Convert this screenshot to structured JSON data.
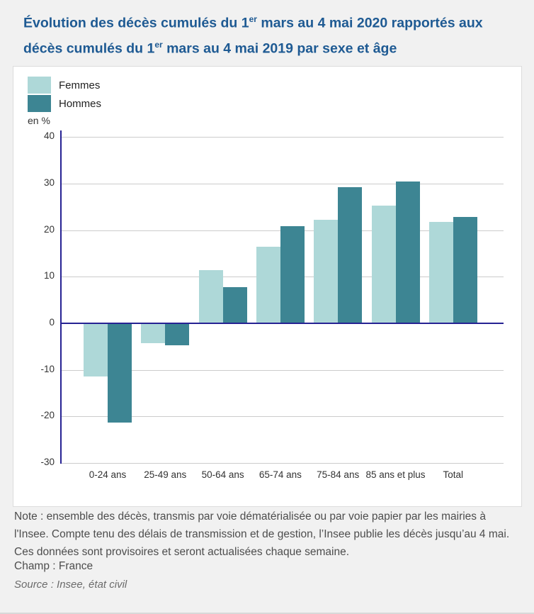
{
  "title": {
    "segments": [
      {
        "text": "Évolution des décès cumulés du 1"
      },
      {
        "text": "er",
        "sup": true
      },
      {
        "text": " mars au 4 mai 2020 rapportés aux décès cumulés du 1"
      },
      {
        "text": "er",
        "sup": true
      },
      {
        "text": " mars au 4 mai 2019 par sexe et âge"
      }
    ]
  },
  "legend": {
    "items": [
      {
        "label": "Femmes",
        "color": "#aed8d8"
      },
      {
        "label": "Hommes",
        "color": "#3d8593"
      }
    ],
    "unit_label": "en %"
  },
  "chart_data": {
    "type": "bar",
    "title": "Évolution des décès cumulés du 1er mars au 4 mai 2020 rapportés aux décès cumulés du 1er mars au 4 mai 2019 par sexe et âge",
    "categories": [
      "0-24 ans",
      "25-49 ans",
      "50-64 ans",
      "65-74 ans",
      "75-84 ans",
      "85 ans et plus",
      "Total"
    ],
    "series": [
      {
        "name": "Femmes",
        "color": "#aed8d8",
        "values": [
          -11.4,
          -4.3,
          11.4,
          16.5,
          22.2,
          25.3,
          21.8
        ]
      },
      {
        "name": "Hommes",
        "color": "#3d8593",
        "values": [
          -21.3,
          -4.7,
          7.8,
          20.9,
          29.2,
          30.5,
          22.8
        ]
      }
    ],
    "xlabel": "",
    "ylabel": "en %",
    "ylim": [
      -30,
      40
    ],
    "ytick_step": 10,
    "grid": true,
    "legend_position": "top-left",
    "axis_color": "#262293",
    "grid_color": "#cccccc"
  },
  "notes": {
    "note": "Note : ensemble des décès, transmis par voie dématérialisée ou par voie papier par les mairies à l'Insee. Compte tenu des délais de transmission et de gestion, l’Insee publie les décès jusqu’au 4 mai. Ces données sont provisoires et seront actualisées chaque semaine.",
    "champ": "Champ : France",
    "source": "Source : Insee, état civil"
  }
}
